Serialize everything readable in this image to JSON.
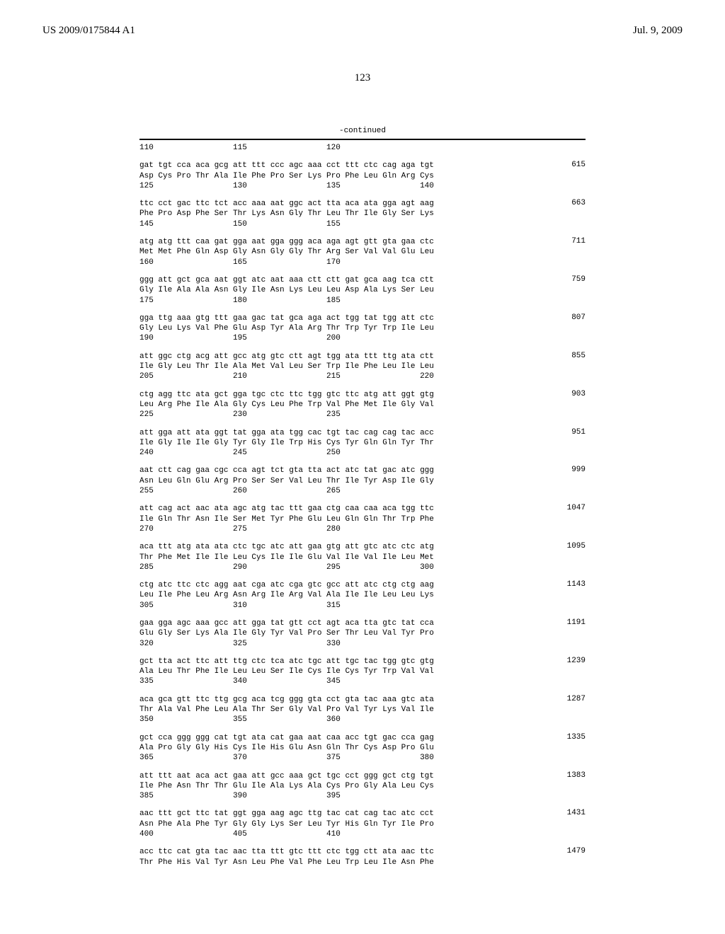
{
  "header": {
    "doc_number": "US 2009/0175844 A1",
    "date": "Jul. 9, 2009"
  },
  "page_number": "123",
  "continued_label": "-continued",
  "first_positions": "110                 115                 120",
  "sequences": [
    {
      "nuc": "gat tgt cca aca gcg att ttt ccc agc aaa cct ttt ctc cag aga tgt",
      "aa": "Asp Cys Pro Thr Ala Ile Phe Pro Ser Lys Pro Phe Leu Gln Arg Cys",
      "pos": "125                 130                 135                 140",
      "num": "615"
    },
    {
      "nuc": "ttc cct gac ttc tct acc aaa aat ggc act tta aca ata gga agt aag",
      "aa": "Phe Pro Asp Phe Ser Thr Lys Asn Gly Thr Leu Thr Ile Gly Ser Lys",
      "pos": "145                 150                 155",
      "num": "663"
    },
    {
      "nuc": "atg atg ttt caa gat gga aat gga ggg aca aga agt gtt gta gaa ctc",
      "aa": "Met Met Phe Gln Asp Gly Asn Gly Gly Thr Arg Ser Val Val Glu Leu",
      "pos": "160                 165                 170",
      "num": "711"
    },
    {
      "nuc": "ggg att gct gca aat ggt atc aat aaa ctt ctt gat gca aag tca ctt",
      "aa": "Gly Ile Ala Ala Asn Gly Ile Asn Lys Leu Leu Asp Ala Lys Ser Leu",
      "pos": "175                 180                 185",
      "num": "759"
    },
    {
      "nuc": "gga ttg aaa gtg ttt gaa gac tat gca aga act tgg tat tgg att ctc",
      "aa": "Gly Leu Lys Val Phe Glu Asp Tyr Ala Arg Thr Trp Tyr Trp Ile Leu",
      "pos": "190                 195                 200",
      "num": "807"
    },
    {
      "nuc": "att ggc ctg acg att gcc atg gtc ctt agt tgg ata ttt ttg ata ctt",
      "aa": "Ile Gly Leu Thr Ile Ala Met Val Leu Ser Trp Ile Phe Leu Ile Leu",
      "pos": "205                 210                 215                 220",
      "num": "855"
    },
    {
      "nuc": "ctg agg ttc ata gct gga tgc ctc ttc tgg gtc ttc atg att ggt gtg",
      "aa": "Leu Arg Phe Ile Ala Gly Cys Leu Phe Trp Val Phe Met Ile Gly Val",
      "pos": "225                 230                 235",
      "num": "903"
    },
    {
      "nuc": "att gga att ata ggt tat gga ata tgg cac tgt tac cag cag tac acc",
      "aa": "Ile Gly Ile Ile Gly Tyr Gly Ile Trp His Cys Tyr Gln Gln Tyr Thr",
      "pos": "240                 245                 250",
      "num": "951"
    },
    {
      "nuc": "aat ctt cag gaa cgc cca agt tct gta tta act atc tat gac atc ggg",
      "aa": "Asn Leu Gln Glu Arg Pro Ser Ser Val Leu Thr Ile Tyr Asp Ile Gly",
      "pos": "255                 260                 265",
      "num": "999"
    },
    {
      "nuc": "att cag act aac ata agc atg tac ttt gaa ctg caa caa aca tgg ttc",
      "aa": "Ile Gln Thr Asn Ile Ser Met Tyr Phe Glu Leu Gln Gln Thr Trp Phe",
      "pos": "270                 275                 280",
      "num": "1047"
    },
    {
      "nuc": "aca ttt atg ata ata ctc tgc atc att gaa gtg att gtc atc ctc atg",
      "aa": "Thr Phe Met Ile Ile Leu Cys Ile Ile Glu Val Ile Val Ile Leu Met",
      "pos": "285                 290                 295                 300",
      "num": "1095"
    },
    {
      "nuc": "ctg atc ttc ctc agg aat cga atc cga gtc gcc att atc ctg ctg aag",
      "aa": "Leu Ile Phe Leu Arg Asn Arg Ile Arg Val Ala Ile Ile Leu Leu Lys",
      "pos": "305                 310                 315",
      "num": "1143"
    },
    {
      "nuc": "gaa gga agc aaa gcc att gga tat gtt cct agt aca tta gtc tat cca",
      "aa": "Glu Gly Ser Lys Ala Ile Gly Tyr Val Pro Ser Thr Leu Val Tyr Pro",
      "pos": "320                 325                 330",
      "num": "1191"
    },
    {
      "nuc": "gct tta act ttc att ttg ctc tca atc tgc att tgc tac tgg gtc gtg",
      "aa": "Ala Leu Thr Phe Ile Leu Leu Ser Ile Cys Ile Cys Tyr Trp Val Val",
      "pos": "335                 340                 345",
      "num": "1239"
    },
    {
      "nuc": "aca gca gtt ttc ttg gcg aca tcg ggg gta cct gta tac aaa gtc ata",
      "aa": "Thr Ala Val Phe Leu Ala Thr Ser Gly Val Pro Val Tyr Lys Val Ile",
      "pos": "350                 355                 360",
      "num": "1287"
    },
    {
      "nuc": "gct cca ggg ggg cat tgt ata cat gaa aat caa acc tgt gac cca gag",
      "aa": "Ala Pro Gly Gly His Cys Ile His Glu Asn Gln Thr Cys Asp Pro Glu",
      "pos": "365                 370                 375                 380",
      "num": "1335"
    },
    {
      "nuc": "att ttt aat aca act gaa att gcc aaa gct tgc cct ggg gct ctg tgt",
      "aa": "Ile Phe Asn Thr Thr Glu Ile Ala Lys Ala Cys Pro Gly Ala Leu Cys",
      "pos": "385                 390                 395",
      "num": "1383"
    },
    {
      "nuc": "aac ttt gct ttc tat ggt gga aag agc ttg tac cat cag tac atc cct",
      "aa": "Asn Phe Ala Phe Tyr Gly Gly Lys Ser Leu Tyr His Gln Tyr Ile Pro",
      "pos": "400                 405                 410",
      "num": "1431"
    },
    {
      "nuc": "acc ttc cat gta tac aac tta ttt gtc ttt ctc tgg ctt ata aac ttc",
      "aa": "Thr Phe His Val Tyr Asn Leu Phe Val Phe Leu Trp Leu Ile Asn Phe",
      "pos": "",
      "num": "1479"
    }
  ]
}
